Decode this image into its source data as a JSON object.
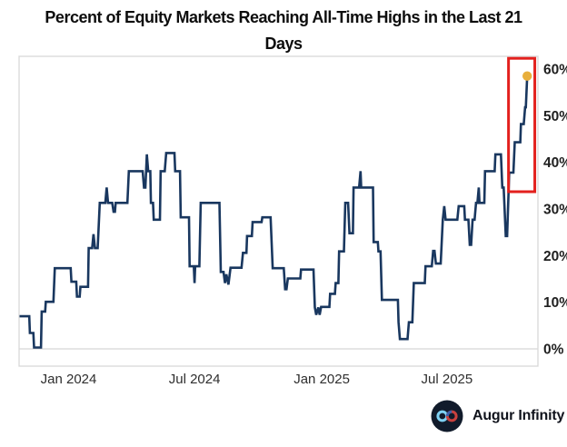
{
  "header": {
    "title_line1": "Percent of Equity Markets Reaching All-Time Highs in the Last 21",
    "title_line2": "Days"
  },
  "branding": {
    "name": "Augur Infinity",
    "icon": "infinity-logo-icon",
    "icon_colors": {
      "circle": "#111B2B",
      "left_loop": "#7FD2F4",
      "right_loop": "#C9413E",
      "right_loop_accent": "#3E5FA8"
    }
  },
  "colors": {
    "line": "#19375F",
    "marker": "#E8AF3C",
    "highlight": "#E3201D",
    "frame": "#D8D8D8",
    "y_label": "#1F1F1F",
    "x_label": "#2E2E2E"
  },
  "chart_data": {
    "type": "line",
    "title": "Percent of Equity Markets Reaching All-Time Highs in the Last 21 Days",
    "xlabel": "",
    "ylabel": "",
    "legend": "none",
    "grid": "zero-line-only",
    "ylim": [
      0,
      62
    ],
    "x_range": [
      "2023-10-22",
      "2025-11-07"
    ],
    "x_ticks": [
      {
        "date": "2024-01-01",
        "label": "Jan 2024"
      },
      {
        "date": "2024-07-01",
        "label": "Jul 2024"
      },
      {
        "date": "2025-01-01",
        "label": "Jan 2025"
      },
      {
        "date": "2025-07-01",
        "label": "Jul 2025"
      }
    ],
    "y_ticks": [
      {
        "value": 0,
        "label": "0%"
      },
      {
        "value": 10,
        "label": "10%"
      },
      {
        "value": 20,
        "label": "20%"
      },
      {
        "value": 30,
        "label": "30%"
      },
      {
        "value": 40,
        "label": "40%"
      },
      {
        "value": 50,
        "label": "50%"
      },
      {
        "value": 60,
        "label": "60%"
      }
    ],
    "highlight_box": {
      "from": "2025-09-28",
      "to": "2025-11-05",
      "value_min": 33.7,
      "value_max": 62.3
    },
    "last_point": {
      "date": "2025-10-25",
      "value": 58.5
    },
    "series": [
      {
        "name": "Percent of equity markets at all-time highs (last 21 days)",
        "points": [
          [
            "2023-10-22",
            7.0
          ],
          [
            "2023-11-05",
            7.0
          ],
          [
            "2023-11-06",
            3.4
          ],
          [
            "2023-11-11",
            3.4
          ],
          [
            "2023-11-12",
            0.3
          ],
          [
            "2023-11-22",
            0.3
          ],
          [
            "2023-11-23",
            8.0
          ],
          [
            "2023-11-28",
            8.0
          ],
          [
            "2023-11-29",
            10.1
          ],
          [
            "2023-12-10",
            10.1
          ],
          [
            "2023-12-12",
            17.3
          ],
          [
            "2024-01-04",
            17.3
          ],
          [
            "2024-01-05",
            14.4
          ],
          [
            "2024-01-12",
            14.4
          ],
          [
            "2024-01-13",
            11.2
          ],
          [
            "2024-01-17",
            11.2
          ],
          [
            "2024-01-18",
            13.3
          ],
          [
            "2024-01-29",
            13.3
          ],
          [
            "2024-01-30",
            21.6
          ],
          [
            "2024-02-04",
            21.6
          ],
          [
            "2024-02-06",
            24.6
          ],
          [
            "2024-02-08",
            21.6
          ],
          [
            "2024-02-12",
            21.6
          ],
          [
            "2024-02-15",
            31.3
          ],
          [
            "2024-02-23",
            31.3
          ],
          [
            "2024-02-25",
            34.6
          ],
          [
            "2024-02-27",
            31.3
          ],
          [
            "2024-03-04",
            31.3
          ],
          [
            "2024-03-06",
            29.4
          ],
          [
            "2024-03-08",
            29.4
          ],
          [
            "2024-03-09",
            31.3
          ],
          [
            "2024-03-26",
            31.3
          ],
          [
            "2024-03-28",
            38.1
          ],
          [
            "2024-04-17",
            38.1
          ],
          [
            "2024-04-19",
            34.6
          ],
          [
            "2024-04-21",
            34.6
          ],
          [
            "2024-04-23",
            41.7
          ],
          [
            "2024-04-25",
            38.1
          ],
          [
            "2024-04-28",
            38.1
          ],
          [
            "2024-04-29",
            31.3
          ],
          [
            "2024-05-02",
            31.3
          ],
          [
            "2024-05-03",
            27.7
          ],
          [
            "2024-05-12",
            27.7
          ],
          [
            "2024-05-13",
            38.1
          ],
          [
            "2024-05-19",
            38.1
          ],
          [
            "2024-05-21",
            42.0
          ],
          [
            "2024-06-02",
            42.0
          ],
          [
            "2024-06-03",
            38.1
          ],
          [
            "2024-06-10",
            38.1
          ],
          [
            "2024-06-11",
            28.2
          ],
          [
            "2024-06-23",
            28.2
          ],
          [
            "2024-06-24",
            17.7
          ],
          [
            "2024-06-30",
            17.7
          ],
          [
            "2024-07-01",
            14.1
          ],
          [
            "2024-07-02",
            17.7
          ],
          [
            "2024-07-08",
            17.7
          ],
          [
            "2024-07-10",
            31.3
          ],
          [
            "2024-08-06",
            31.3
          ],
          [
            "2024-08-08",
            16.5
          ],
          [
            "2024-08-12",
            16.5
          ],
          [
            "2024-08-14",
            14.1
          ],
          [
            "2024-08-16",
            16.0
          ],
          [
            "2024-08-19",
            13.8
          ],
          [
            "2024-08-22",
            17.4
          ],
          [
            "2024-09-07",
            17.4
          ],
          [
            "2024-09-09",
            20.6
          ],
          [
            "2024-09-14",
            20.6
          ],
          [
            "2024-09-15",
            24.2
          ],
          [
            "2024-09-22",
            24.2
          ],
          [
            "2024-09-23",
            27.2
          ],
          [
            "2024-10-06",
            27.2
          ],
          [
            "2024-10-07",
            28.2
          ],
          [
            "2024-10-19",
            28.2
          ],
          [
            "2024-10-22",
            17.3
          ],
          [
            "2024-11-07",
            17.3
          ],
          [
            "2024-11-09",
            12.8
          ],
          [
            "2024-11-11",
            12.8
          ],
          [
            "2024-11-13",
            15.1
          ],
          [
            "2024-12-01",
            15.1
          ],
          [
            "2024-12-02",
            17.0
          ],
          [
            "2024-12-20",
            17.0
          ],
          [
            "2024-12-22",
            8.9
          ],
          [
            "2024-12-24",
            7.3
          ],
          [
            "2024-12-27",
            8.9
          ],
          [
            "2024-12-29",
            7.3
          ],
          [
            "2024-12-31",
            9.0
          ],
          [
            "2025-01-12",
            9.0
          ],
          [
            "2025-01-13",
            11.8
          ],
          [
            "2025-01-20",
            11.8
          ],
          [
            "2025-01-21",
            14.1
          ],
          [
            "2025-01-25",
            14.1
          ],
          [
            "2025-01-26",
            20.9
          ],
          [
            "2025-02-02",
            20.9
          ],
          [
            "2025-02-04",
            31.3
          ],
          [
            "2025-02-08",
            31.3
          ],
          [
            "2025-02-10",
            24.8
          ],
          [
            "2025-02-15",
            24.8
          ],
          [
            "2025-02-16",
            34.6
          ],
          [
            "2025-02-24",
            34.6
          ],
          [
            "2025-02-26",
            38.1
          ],
          [
            "2025-02-27",
            34.6
          ],
          [
            "2025-03-16",
            34.6
          ],
          [
            "2025-03-17",
            22.9
          ],
          [
            "2025-03-23",
            22.9
          ],
          [
            "2025-03-24",
            20.9
          ],
          [
            "2025-03-27",
            20.9
          ],
          [
            "2025-03-29",
            10.5
          ],
          [
            "2025-04-21",
            10.5
          ],
          [
            "2025-04-22",
            5.7
          ],
          [
            "2025-04-24",
            2.1
          ],
          [
            "2025-05-05",
            2.1
          ],
          [
            "2025-05-07",
            5.7
          ],
          [
            "2025-05-12",
            5.7
          ],
          [
            "2025-05-14",
            14.1
          ],
          [
            "2025-05-30",
            14.1
          ],
          [
            "2025-05-31",
            17.7
          ],
          [
            "2025-06-09",
            17.7
          ],
          [
            "2025-06-11",
            21.0
          ],
          [
            "2025-06-13",
            21.0
          ],
          [
            "2025-06-15",
            18.3
          ],
          [
            "2025-06-22",
            18.3
          ],
          [
            "2025-06-25",
            27.7
          ],
          [
            "2025-06-27",
            30.6
          ],
          [
            "2025-06-29",
            27.7
          ],
          [
            "2025-07-16",
            27.7
          ],
          [
            "2025-07-18",
            30.6
          ],
          [
            "2025-07-26",
            30.6
          ],
          [
            "2025-07-27",
            27.7
          ],
          [
            "2025-08-01",
            27.7
          ],
          [
            "2025-08-03",
            22.3
          ],
          [
            "2025-08-05",
            22.3
          ],
          [
            "2025-08-07",
            27.7
          ],
          [
            "2025-08-10",
            27.7
          ],
          [
            "2025-08-12",
            31.3
          ],
          [
            "2025-08-14",
            31.3
          ],
          [
            "2025-08-16",
            34.6
          ],
          [
            "2025-08-17",
            31.3
          ],
          [
            "2025-08-24",
            31.3
          ],
          [
            "2025-08-25",
            38.1
          ],
          [
            "2025-09-08",
            38.1
          ],
          [
            "2025-09-09",
            41.7
          ],
          [
            "2025-09-17",
            41.7
          ],
          [
            "2025-09-19",
            34.6
          ],
          [
            "2025-09-21",
            34.6
          ],
          [
            "2025-09-24",
            24.2
          ],
          [
            "2025-09-26",
            24.2
          ],
          [
            "2025-09-29",
            37.8
          ],
          [
            "2025-10-05",
            37.8
          ],
          [
            "2025-10-07",
            44.3
          ],
          [
            "2025-10-15",
            44.3
          ],
          [
            "2025-10-16",
            48.2
          ],
          [
            "2025-10-20",
            48.2
          ],
          [
            "2025-10-22",
            51.8
          ],
          [
            "2025-10-23",
            51.8
          ],
          [
            "2025-10-25",
            58.5
          ]
        ]
      }
    ]
  }
}
